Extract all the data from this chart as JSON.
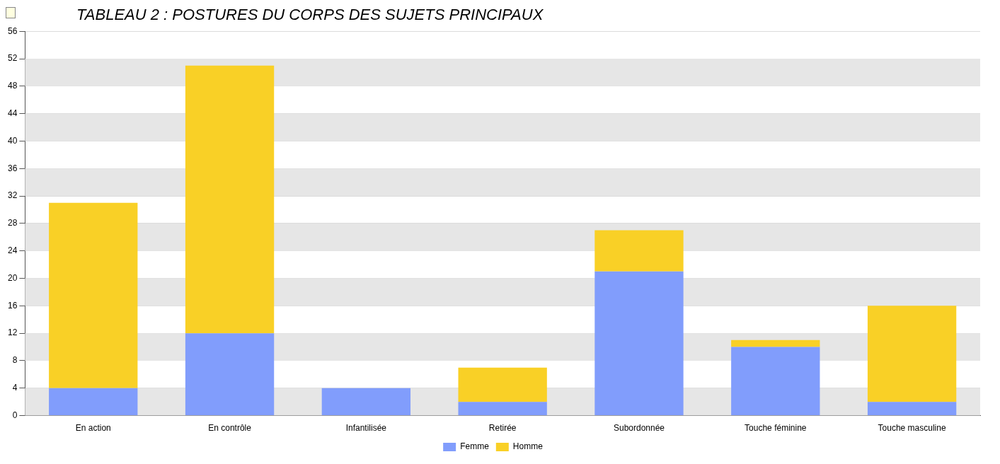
{
  "chart_data": {
    "type": "bar",
    "title": "TABLEAU 2 : POSTURES DU CORPS DES SUJETS PRINCIPAUX",
    "categories": [
      "En action",
      "En contrôle",
      "Infantilisée",
      "Retirée",
      "Subordonnée",
      "Touche féminine",
      "Touche masculine"
    ],
    "stacked": true,
    "series": [
      {
        "name": "Femme",
        "color": "#819dfc",
        "values": [
          4,
          12,
          4,
          2,
          21,
          10,
          2
        ]
      },
      {
        "name": "Homme",
        "color": "#f9d026",
        "values": [
          27,
          39,
          0,
          5,
          6,
          1,
          14
        ]
      }
    ],
    "ylim": [
      0,
      56
    ],
    "yticks": [
      0,
      4,
      8,
      12,
      16,
      20,
      24,
      28,
      32,
      36,
      40,
      44,
      48,
      52,
      56
    ],
    "grid": "y",
    "legend": "bottom"
  }
}
